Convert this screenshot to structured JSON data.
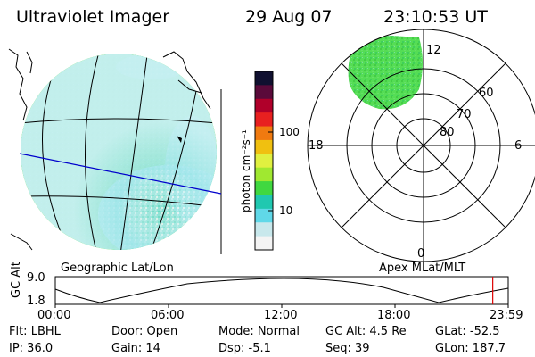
{
  "header": {
    "instrument": "Ultraviolet Imager",
    "date": "29 Aug 07",
    "time": "23:10:53 UT"
  },
  "colorbar": {
    "unit_label": "photon cm⁻²s⁻¹",
    "ticks": [
      "100",
      "10"
    ],
    "colors": [
      "#101030",
      "#5a0a3a",
      "#b0002a",
      "#e82020",
      "#f07a10",
      "#f0c010",
      "#e0f040",
      "#a0e830",
      "#40d840",
      "#20c8b0",
      "#60d8e8",
      "#c8e8ec",
      "#f4f4f4"
    ]
  },
  "polar_plot": {
    "mlat_labels": [
      "60",
      "70",
      "80"
    ],
    "mlt_labels": {
      "top": "12",
      "left": "18",
      "right": "6",
      "bottom": "0"
    }
  },
  "panel_labels": {
    "geographic": "Geographic Lat/Lon",
    "apex": "Apex MLat/MLT"
  },
  "altitude_plot": {
    "ylabel": "GC Alt",
    "y_ticks": [
      "9.0",
      "1.8"
    ],
    "x_ticks": [
      "00:00",
      "06:00",
      "12:00",
      "18:00",
      "23:59"
    ],
    "current_time_marker_hours": 23.18
  },
  "info": {
    "flt": "Flt: LBHL",
    "ip": "IP: 36.0",
    "door": "Door: Open",
    "gain": "Gain: 14",
    "mode": "Mode: Normal",
    "dsp": "Dsp:   -5.1",
    "gcalt": "GC Alt: 4.5 Re",
    "seq": "Seq: 39",
    "glat": "GLat: -52.5",
    "glon": "GLon: 187.7"
  },
  "palette": {
    "earth_green": "#55dd55",
    "cyan_glow": "#88e0e8",
    "grid_black": "#000000",
    "terminator_blue": "#0000cc",
    "marker_red": "#dd0000"
  }
}
